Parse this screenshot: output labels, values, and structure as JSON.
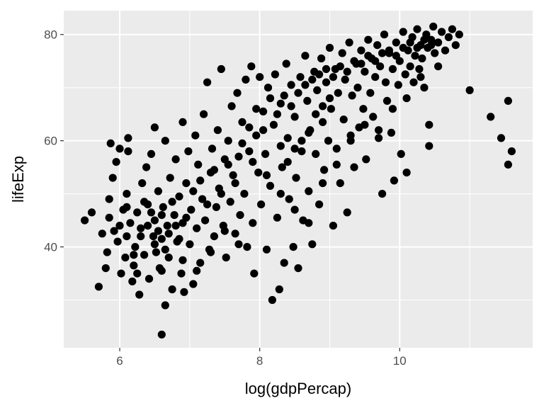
{
  "chart_data": {
    "type": "scatter",
    "title": "",
    "xlabel": "log(gdpPercap)",
    "ylabel": "lifeExp",
    "xlim": [
      5.2,
      11.9
    ],
    "ylim": [
      21.0,
      84.5
    ],
    "x_ticks": [
      6,
      8,
      10
    ],
    "x_tick_labels": [
      "6",
      "8",
      "10"
    ],
    "x_minor_ticks": [
      7,
      9,
      11
    ],
    "y_ticks": [
      40,
      60,
      80
    ],
    "y_tick_labels": [
      "40",
      "60",
      "80"
    ],
    "y_minor_ticks": [
      30,
      50,
      70
    ],
    "grid": true,
    "legend": "none",
    "point_color": "#000000",
    "panel_color": "#ebebeb",
    "gridline_color": "#ffffff",
    "series": [
      {
        "points": [
          [
            5.5,
            45.0
          ],
          [
            5.6,
            46.5
          ],
          [
            5.7,
            32.5
          ],
          [
            5.75,
            42.5
          ],
          [
            5.8,
            36.0
          ],
          [
            5.82,
            39.0
          ],
          [
            5.85,
            45.5
          ],
          [
            5.85,
            49.0
          ],
          [
            5.87,
            59.5
          ],
          [
            5.9,
            53.0
          ],
          [
            5.92,
            43.0
          ],
          [
            5.95,
            56.0
          ],
          [
            5.97,
            41.0
          ],
          [
            6.0,
            58.5
          ],
          [
            6.02,
            35.0
          ],
          [
            6.05,
            47.0
          ],
          [
            6.08,
            38.0
          ],
          [
            6.1,
            42.0
          ],
          [
            6.1,
            50.0
          ],
          [
            6.12,
            58.0
          ],
          [
            6.12,
            60.5
          ],
          [
            6.15,
            44.5
          ],
          [
            6.18,
            33.5
          ],
          [
            6.2,
            36.5
          ],
          [
            6.22,
            40.0
          ],
          [
            6.25,
            46.5
          ],
          [
            6.28,
            31.0
          ],
          [
            6.3,
            43.5
          ],
          [
            6.32,
            52.0
          ],
          [
            6.35,
            38.5
          ],
          [
            6.38,
            55.0
          ],
          [
            6.4,
            48.0
          ],
          [
            6.42,
            34.0
          ],
          [
            6.45,
            57.5
          ],
          [
            6.48,
            42.0
          ],
          [
            6.5,
            45.0
          ],
          [
            6.5,
            62.5
          ],
          [
            6.52,
            39.0
          ],
          [
            6.55,
            50.5
          ],
          [
            6.57,
            36.0
          ],
          [
            6.6,
            23.5
          ],
          [
            6.6,
            41.5
          ],
          [
            6.62,
            47.5
          ],
          [
            6.65,
            29.0
          ],
          [
            6.65,
            60.0
          ],
          [
            6.68,
            44.0
          ],
          [
            6.7,
            38.0
          ],
          [
            6.72,
            53.0
          ],
          [
            6.75,
            32.0
          ],
          [
            6.78,
            46.0
          ],
          [
            6.8,
            56.5
          ],
          [
            6.82,
            41.0
          ],
          [
            6.85,
            49.5
          ],
          [
            6.88,
            35.0
          ],
          [
            6.9,
            63.5
          ],
          [
            6.9,
            44.5
          ],
          [
            6.92,
            31.5
          ],
          [
            6.95,
            52.0
          ],
          [
            6.98,
            58.0
          ],
          [
            7.0,
            40.5
          ],
          [
            7.02,
            47.0
          ],
          [
            7.05,
            33.0
          ],
          [
            7.08,
            61.0
          ],
          [
            7.1,
            43.5
          ],
          [
            7.12,
            55.5
          ],
          [
            7.15,
            37.0
          ],
          [
            7.18,
            49.0
          ],
          [
            7.2,
            65.0
          ],
          [
            7.22,
            45.0
          ],
          [
            7.25,
            71.0
          ],
          [
            7.28,
            39.5
          ],
          [
            7.3,
            54.0
          ],
          [
            7.32,
            58.5
          ],
          [
            7.35,
            42.0
          ],
          [
            7.38,
            47.5
          ],
          [
            7.4,
            62.0
          ],
          [
            7.42,
            51.0
          ],
          [
            7.45,
            73.5
          ],
          [
            7.48,
            44.0
          ],
          [
            7.5,
            56.5
          ],
          [
            7.52,
            38.0
          ],
          [
            7.55,
            60.0
          ],
          [
            7.58,
            48.5
          ],
          [
            7.6,
            66.5
          ],
          [
            7.62,
            53.5
          ],
          [
            7.65,
            42.5
          ],
          [
            7.68,
            69.0
          ],
          [
            7.7,
            57.0
          ],
          [
            7.72,
            46.0
          ],
          [
            7.75,
            63.5
          ],
          [
            7.78,
            50.0
          ],
          [
            7.8,
            71.5
          ],
          [
            7.82,
            40.0
          ],
          [
            7.85,
            58.0
          ],
          [
            7.88,
            74.0
          ],
          [
            7.9,
            44.5
          ],
          [
            7.92,
            35.0
          ],
          [
            7.95,
            61.0
          ],
          [
            7.98,
            54.0
          ],
          [
            8.0,
            72.0
          ],
          [
            8.02,
            48.0
          ],
          [
            8.05,
            65.5
          ],
          [
            8.08,
            57.5
          ],
          [
            8.1,
            39.5
          ],
          [
            8.12,
            70.0
          ],
          [
            8.15,
            51.5
          ],
          [
            8.18,
            30.0
          ],
          [
            8.2,
            63.0
          ],
          [
            8.22,
            72.5
          ],
          [
            8.25,
            45.5
          ],
          [
            8.28,
            32.0
          ],
          [
            8.3,
            67.0
          ],
          [
            8.32,
            55.0
          ],
          [
            8.35,
            37.0
          ],
          [
            8.38,
            74.5
          ],
          [
            8.4,
            60.5
          ],
          [
            8.42,
            49.0
          ],
          [
            8.45,
            70.5
          ],
          [
            8.48,
            40.0
          ],
          [
            8.5,
            64.5
          ],
          [
            8.52,
            53.0
          ],
          [
            8.55,
            36.0
          ],
          [
            8.58,
            72.0
          ],
          [
            8.6,
            58.0
          ],
          [
            8.62,
            45.0
          ],
          [
            8.65,
            76.0
          ],
          [
            8.68,
            67.5
          ],
          [
            8.7,
            50.5
          ],
          [
            8.72,
            62.0
          ],
          [
            8.75,
            40.5
          ],
          [
            8.78,
            73.0
          ],
          [
            8.8,
            57.5
          ],
          [
            8.82,
            69.5
          ],
          [
            8.85,
            48.0
          ],
          [
            8.88,
            75.5
          ],
          [
            8.9,
            63.5
          ],
          [
            8.92,
            54.5
          ],
          [
            8.95,
            71.0
          ],
          [
            8.98,
            60.0
          ],
          [
            9.0,
            77.5
          ],
          [
            9.02,
            66.0
          ],
          [
            9.05,
            44.0
          ],
          [
            9.08,
            73.5
          ],
          [
            9.1,
            58.5
          ],
          [
            9.12,
            69.0
          ],
          [
            9.15,
            52.0
          ],
          [
            9.18,
            76.5
          ],
          [
            9.2,
            64.0
          ],
          [
            9.22,
            71.5
          ],
          [
            9.25,
            46.5
          ],
          [
            9.28,
            78.5
          ],
          [
            9.3,
            61.0
          ],
          [
            9.32,
            68.5
          ],
          [
            9.35,
            55.0
          ],
          [
            9.38,
            74.5
          ],
          [
            9.4,
            70.0
          ],
          [
            9.42,
            62.5
          ],
          [
            9.45,
            77.0
          ],
          [
            9.48,
            66.0
          ],
          [
            9.5,
            73.0
          ],
          [
            9.52,
            56.5
          ],
          [
            9.55,
            79.0
          ],
          [
            9.58,
            69.0
          ],
          [
            9.6,
            75.5
          ],
          [
            9.62,
            64.5
          ],
          [
            9.65,
            72.0
          ],
          [
            9.68,
            78.0
          ],
          [
            9.7,
            62.0
          ],
          [
            9.72,
            74.0
          ],
          [
            9.75,
            50.0
          ],
          [
            9.78,
            80.0
          ],
          [
            9.8,
            71.0
          ],
          [
            9.82,
            67.5
          ],
          [
            9.85,
            76.5
          ],
          [
            9.88,
            61.5
          ],
          [
            9.9,
            73.5
          ],
          [
            9.92,
            52.5
          ],
          [
            9.95,
            78.5
          ],
          [
            9.98,
            70.5
          ],
          [
            10.0,
            75.0
          ],
          [
            10.02,
            57.5
          ],
          [
            10.05,
            80.5
          ],
          [
            10.08,
            72.5
          ],
          [
            10.1,
            54.0
          ],
          [
            10.12,
            77.0
          ],
          [
            10.15,
            74.0
          ],
          [
            10.18,
            79.5
          ],
          [
            10.2,
            71.0
          ],
          [
            10.22,
            76.0
          ],
          [
            10.25,
            81.0
          ],
          [
            10.28,
            73.5
          ],
          [
            10.3,
            78.0
          ],
          [
            10.32,
            75.5
          ],
          [
            10.35,
            70.0
          ],
          [
            10.38,
            80.0
          ],
          [
            10.4,
            77.5
          ],
          [
            10.42,
            63.0
          ],
          [
            10.42,
            59.0
          ],
          [
            10.45,
            79.0
          ],
          [
            10.48,
            81.5
          ],
          [
            10.5,
            76.5
          ],
          [
            10.55,
            78.5
          ],
          [
            10.6,
            80.5
          ],
          [
            10.65,
            77.0
          ],
          [
            10.7,
            79.5
          ],
          [
            10.75,
            81.0
          ],
          [
            10.8,
            78.0
          ],
          [
            10.85,
            80.0
          ],
          [
            11.0,
            69.5
          ],
          [
            11.3,
            64.5
          ],
          [
            11.45,
            60.5
          ],
          [
            11.55,
            67.5
          ],
          [
            11.55,
            55.5
          ],
          [
            11.6,
            58.0
          ],
          [
            6.3,
            42.0
          ],
          [
            6.4,
            44.0
          ],
          [
            6.5,
            40.5
          ],
          [
            6.55,
            43.0
          ],
          [
            6.6,
            46.0
          ],
          [
            6.7,
            42.5
          ],
          [
            6.75,
            48.5
          ],
          [
            6.8,
            44.0
          ],
          [
            6.45,
            46.5
          ],
          [
            6.35,
            48.5
          ],
          [
            6.65,
            39.5
          ],
          [
            6.85,
            41.5
          ],
          [
            6.95,
            45.5
          ],
          [
            7.05,
            50.5
          ],
          [
            7.15,
            52.5
          ],
          [
            7.25,
            48.0
          ],
          [
            7.35,
            54.5
          ],
          [
            7.45,
            50.0
          ],
          [
            7.55,
            55.5
          ],
          [
            7.65,
            52.0
          ],
          [
            7.75,
            59.5
          ],
          [
            7.85,
            62.5
          ],
          [
            7.95,
            66.0
          ],
          [
            8.05,
            62.0
          ],
          [
            8.15,
            68.0
          ],
          [
            8.25,
            65.0
          ],
          [
            8.35,
            68.5
          ],
          [
            8.45,
            66.5
          ],
          [
            8.55,
            69.0
          ],
          [
            8.65,
            70.5
          ],
          [
            8.75,
            71.5
          ],
          [
            8.85,
            72.5
          ],
          [
            8.95,
            73.5
          ],
          [
            9.05,
            72.0
          ],
          [
            9.15,
            74.0
          ],
          [
            9.25,
            73.0
          ],
          [
            9.35,
            75.0
          ],
          [
            9.45,
            74.5
          ],
          [
            9.55,
            76.0
          ],
          [
            9.65,
            75.0
          ],
          [
            9.75,
            76.5
          ],
          [
            9.85,
            77.0
          ],
          [
            9.95,
            76.0
          ],
          [
            10.05,
            77.5
          ],
          [
            10.15,
            78.5
          ],
          [
            10.25,
            77.5
          ],
          [
            10.35,
            79.0
          ],
          [
            10.45,
            78.0
          ],
          [
            8.6,
            60.0
          ],
          [
            8.7,
            61.5
          ],
          [
            8.8,
            65.0
          ],
          [
            8.9,
            66.5
          ],
          [
            9.0,
            68.0
          ],
          [
            8.5,
            58.5
          ],
          [
            8.4,
            56.0
          ],
          [
            8.3,
            59.0
          ],
          [
            6.2,
            38.5
          ],
          [
            6.0,
            44.0
          ],
          [
            6.1,
            47.5
          ],
          [
            6.25,
            35.0
          ],
          [
            6.6,
            35.5
          ],
          [
            6.9,
            37.5
          ],
          [
            7.1,
            35.5
          ],
          [
            7.3,
            39.0
          ],
          [
            7.5,
            43.0
          ],
          [
            7.7,
            40.5
          ],
          [
            7.9,
            56.0
          ],
          [
            8.1,
            53.5
          ],
          [
            8.3,
            50.0
          ],
          [
            8.5,
            47.0
          ],
          [
            8.7,
            44.5
          ],
          [
            8.9,
            52.0
          ],
          [
            9.1,
            55.5
          ],
          [
            9.3,
            60.0
          ],
          [
            9.5,
            63.0
          ],
          [
            9.7,
            60.5
          ],
          [
            9.9,
            66.0
          ],
          [
            10.1,
            68.0
          ],
          [
            10.3,
            72.0
          ],
          [
            10.55,
            74.0
          ]
        ]
      }
    ]
  }
}
